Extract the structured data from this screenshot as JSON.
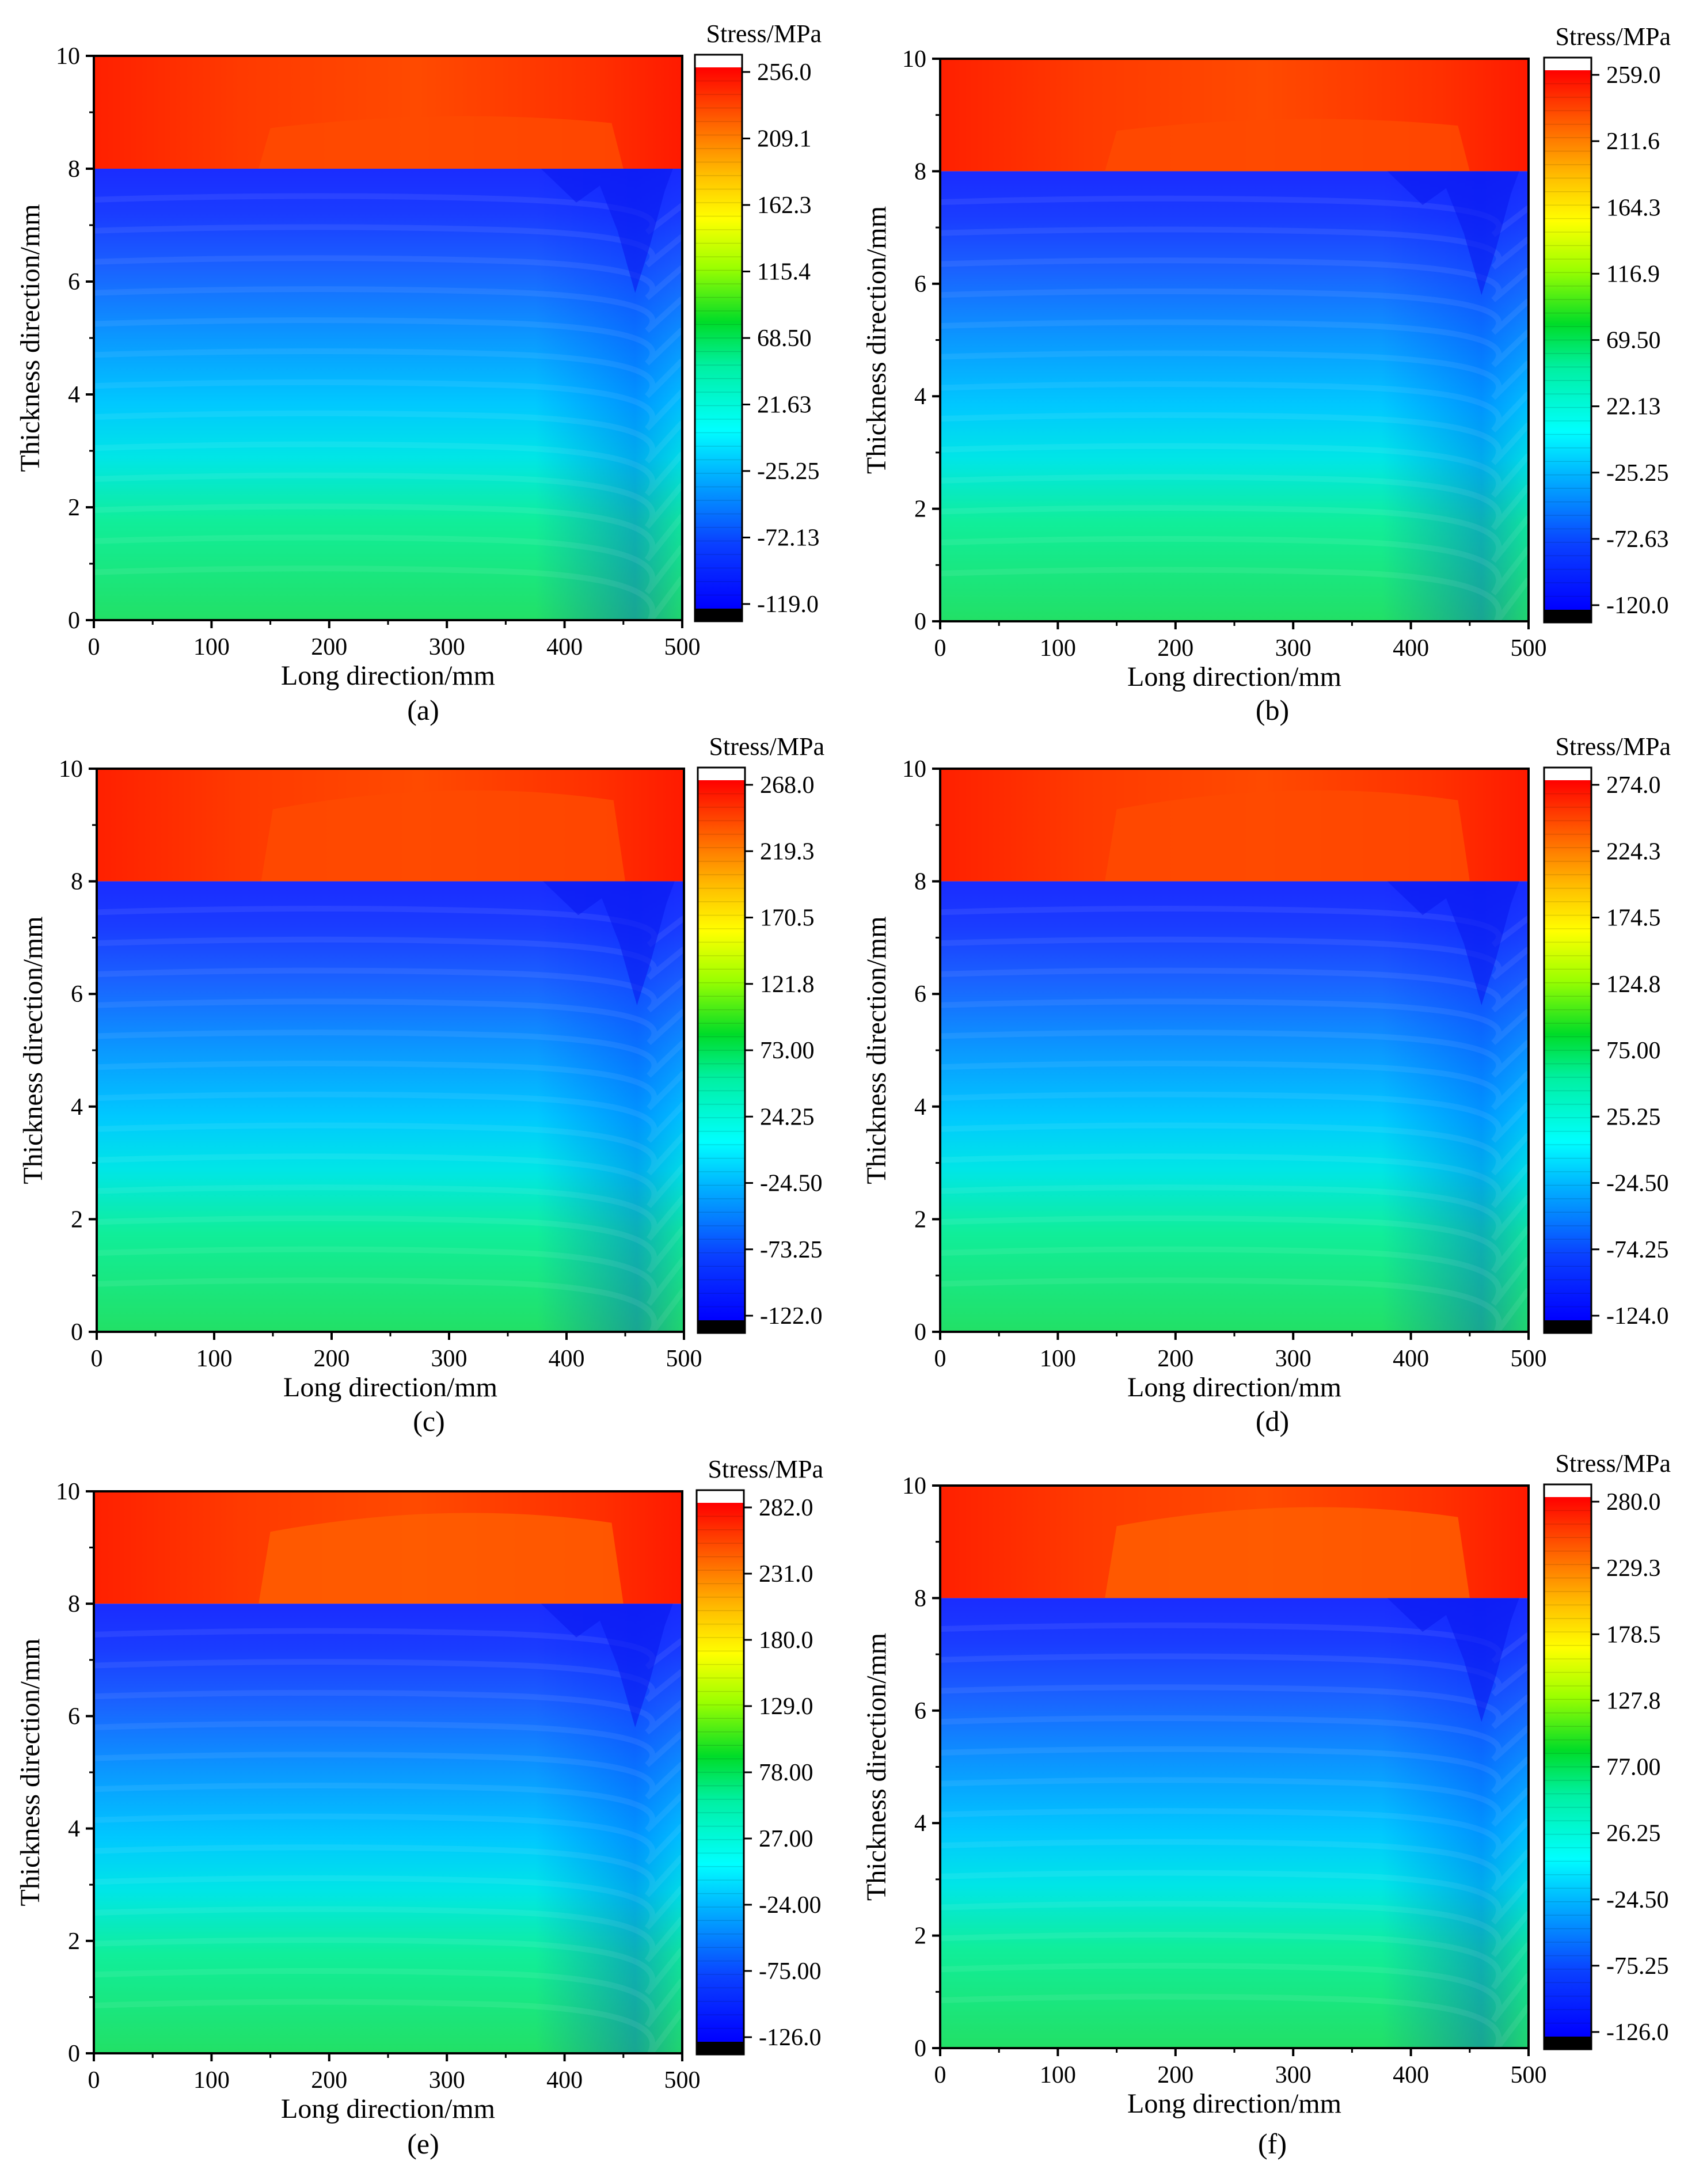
{
  "figure": {
    "colors": {
      "tension_red": "#ff2a00",
      "tension_orange": "#ff5e00",
      "compression_blue": "#1a2cff",
      "deep_blue": "#0a17ee",
      "cyan": "#00dcff",
      "green": "#22e066",
      "overflow_white": "#ffffff",
      "underflow_black": "#000000"
    }
  },
  "chart_data": [
    {
      "type": "heatmap",
      "panel_label": "(a)",
      "colorbar_title": "Stress/MPa",
      "xlabel": "Long direction/mm",
      "ylabel": "Thickness direction/mm",
      "xlim": [
        0,
        500
      ],
      "ylim": [
        0,
        10
      ],
      "x_ticks": [
        "0",
        "100",
        "200",
        "300",
        "400",
        "500"
      ],
      "y_ticks": [
        "0",
        "2",
        "4",
        "6",
        "8",
        "10"
      ],
      "interface_y": 8,
      "colorbar_ticks": [
        "256.0",
        "209.1",
        "162.3",
        "115.4",
        "68.50",
        "21.63",
        "-25.25",
        "-72.13",
        "-119.0"
      ],
      "zlim": [
        -119.0,
        256.0
      ],
      "top_layer_stress_range": [
        235,
        256
      ],
      "bottom_stress_range": [
        -119,
        60
      ]
    },
    {
      "type": "heatmap",
      "panel_label": "(b)",
      "colorbar_title": "Stress/MPa",
      "xlabel": "Long direction/mm",
      "ylabel": "Thickness direction/mm",
      "xlim": [
        0,
        500
      ],
      "ylim": [
        0,
        10
      ],
      "x_ticks": [
        "0",
        "100",
        "200",
        "300",
        "400",
        "500"
      ],
      "y_ticks": [
        "0",
        "2",
        "4",
        "6",
        "8",
        "10"
      ],
      "interface_y": 8,
      "colorbar_ticks": [
        "259.0",
        "211.6",
        "164.3",
        "116.9",
        "69.50",
        "22.13",
        "-25.25",
        "-72.63",
        "-120.0"
      ],
      "zlim": [
        -120.0,
        259.0
      ],
      "top_layer_stress_range": [
        230,
        259
      ],
      "bottom_stress_range": [
        -120,
        60
      ]
    },
    {
      "type": "heatmap",
      "panel_label": "(c)",
      "colorbar_title": "Stress/MPa",
      "xlabel": "Long direction/mm",
      "ylabel": "Thickness direction/mm",
      "xlim": [
        0,
        500
      ],
      "ylim": [
        0,
        10
      ],
      "x_ticks": [
        "0",
        "100",
        "200",
        "300",
        "400",
        "500"
      ],
      "y_ticks": [
        "0",
        "2",
        "4",
        "6",
        "8",
        "10"
      ],
      "interface_y": 8,
      "colorbar_ticks": [
        "268.0",
        "219.3",
        "170.5",
        "121.8",
        "73.00",
        "24.25",
        "-24.50",
        "-73.25",
        "-122.0"
      ],
      "zlim": [
        -122.0,
        268.0
      ],
      "top_layer_stress_range": [
        225,
        268
      ],
      "bottom_stress_range": [
        -122,
        60
      ]
    },
    {
      "type": "heatmap",
      "panel_label": "(d)",
      "colorbar_title": "Stress/MPa",
      "xlabel": "Long direction/mm",
      "ylabel": "Thickness direction/mm",
      "xlim": [
        0,
        500
      ],
      "ylim": [
        0,
        10
      ],
      "x_ticks": [
        "0",
        "100",
        "200",
        "300",
        "400",
        "500"
      ],
      "y_ticks": [
        "0",
        "2",
        "4",
        "6",
        "8",
        "10"
      ],
      "interface_y": 8,
      "colorbar_ticks": [
        "274.0",
        "224.3",
        "174.5",
        "124.8",
        "75.00",
        "25.25",
        "-24.50",
        "-74.25",
        "-124.0"
      ],
      "zlim": [
        -124.0,
        274.0
      ],
      "top_layer_stress_range": [
        222,
        274
      ],
      "bottom_stress_range": [
        -124,
        60
      ]
    },
    {
      "type": "heatmap",
      "panel_label": "(e)",
      "colorbar_title": "Stress/MPa",
      "xlabel": "Long direction/mm",
      "ylabel": "Thickness direction/mm",
      "xlim": [
        0,
        500
      ],
      "ylim": [
        0,
        10
      ],
      "x_ticks": [
        "0",
        "100",
        "200",
        "300",
        "400",
        "500"
      ],
      "y_ticks": [
        "0",
        "2",
        "4",
        "6",
        "8",
        "10"
      ],
      "interface_y": 8,
      "colorbar_ticks": [
        "282.0",
        "231.0",
        "180.0",
        "129.0",
        "78.00",
        "27.00",
        "-24.00",
        "-75.00",
        "-126.0"
      ],
      "zlim": [
        -126.0,
        282.0
      ],
      "top_layer_stress_range": [
        220,
        282
      ],
      "bottom_stress_range": [
        -126,
        60
      ]
    },
    {
      "type": "heatmap",
      "panel_label": "(f)",
      "colorbar_title": "Stress/MPa",
      "xlabel": "Long direction/mm",
      "ylabel": "Thickness direction/mm",
      "xlim": [
        0,
        500
      ],
      "ylim": [
        0,
        10
      ],
      "x_ticks": [
        "0",
        "100",
        "200",
        "300",
        "400",
        "500"
      ],
      "y_ticks": [
        "0",
        "2",
        "4",
        "6",
        "8",
        "10"
      ],
      "interface_y": 8,
      "colorbar_ticks": [
        "280.0",
        "229.3",
        "178.5",
        "127.8",
        "77.00",
        "26.25",
        "-24.50",
        "-75.25",
        "-126.0"
      ],
      "zlim": [
        -126.0,
        280.0
      ],
      "top_layer_stress_range": [
        220,
        280
      ],
      "bottom_stress_range": [
        -126,
        60
      ]
    }
  ]
}
